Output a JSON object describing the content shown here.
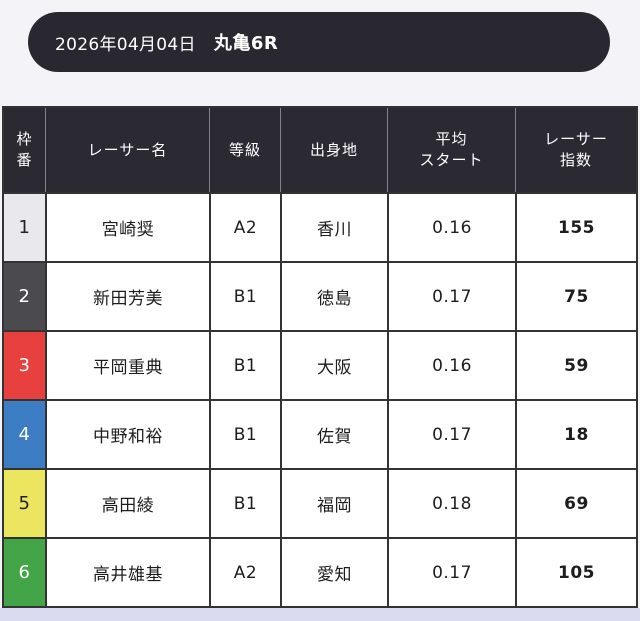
{
  "title_bar": {
    "date": "2026年04月04日",
    "race": "丸亀6R"
  },
  "table": {
    "headers": {
      "frame_line1": "枠",
      "frame_line2": "番",
      "name": "レーサー名",
      "grade": "等級",
      "origin": "出身地",
      "start_line1": "平均",
      "start_line2": "スタート",
      "index_line1": "レーサー",
      "index_line2": "指数"
    },
    "rows": [
      {
        "frame": "1",
        "name": "宮崎奨",
        "grade": "A2",
        "origin": "香川",
        "avg_start": "0.16",
        "index": "155"
      },
      {
        "frame": "2",
        "name": "新田芳美",
        "grade": "B1",
        "origin": "徳島",
        "avg_start": "0.17",
        "index": "75"
      },
      {
        "frame": "3",
        "name": "平岡重典",
        "grade": "B1",
        "origin": "大阪",
        "avg_start": "0.16",
        "index": "59"
      },
      {
        "frame": "4",
        "name": "中野和裕",
        "grade": "B1",
        "origin": "佐賀",
        "avg_start": "0.17",
        "index": "18"
      },
      {
        "frame": "5",
        "name": "高田綾",
        "grade": "B1",
        "origin": "福岡",
        "avg_start": "0.18",
        "index": "69"
      },
      {
        "frame": "6",
        "name": "高井雄基",
        "grade": "A2",
        "origin": "愛知",
        "avg_start": "0.17",
        "index": "105"
      }
    ]
  },
  "colors": {
    "page-bg": "#f4f3f8",
    "footer-bg": "#dadaf0",
    "bar-bg": "#29272f",
    "bar-text": "#ffffff",
    "thead-bg": "#2b2a33",
    "thead-text": "#ffffff",
    "thead-divider": "#84828c",
    "cell-border": "#333333",
    "cell-bg": "#ffffff",
    "cell-text": "#1d1d1f"
  },
  "boat_colors": {
    "1": {
      "bg": "#e9e8ec",
      "text": "#222222"
    },
    "2": {
      "bg": "#4b4a4f",
      "text": "#ffffff"
    },
    "3": {
      "bg": "#e8403e",
      "text": "#ffffff"
    },
    "4": {
      "bg": "#3c7dc4",
      "text": "#ffffff"
    },
    "5": {
      "bg": "#ebe55f",
      "text": "#222222"
    },
    "6": {
      "bg": "#44a548",
      "text": "#ffffff"
    }
  }
}
